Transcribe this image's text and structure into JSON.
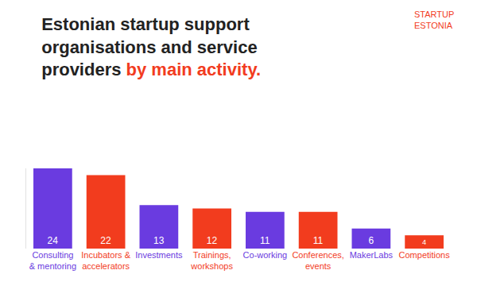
{
  "chart_data": {
    "type": "bar",
    "title": "Estonian startup support organisations and service providers",
    "subtitle": "by main activity.",
    "annotations": [
      "STARTUP ESTONIA"
    ],
    "categories": [
      "Consulting & mentoring",
      "Incubators & accelerators",
      "Investments",
      "Trainings, workshops",
      "Co-working",
      "Conferences, events",
      "MakerLabs",
      "Competitions"
    ],
    "values": [
      24,
      22,
      13,
      12,
      11,
      11,
      6,
      4
    ],
    "colors": [
      "#6a3be0",
      "#f23c1e",
      "#6a3be0",
      "#f23c1e",
      "#6a3be0",
      "#f23c1e",
      "#6a3be0",
      "#f23c1e"
    ],
    "ylim": [
      0,
      24
    ],
    "yticks": [],
    "grid": false,
    "data_labels": true,
    "tick_labels": "x"
  }
}
